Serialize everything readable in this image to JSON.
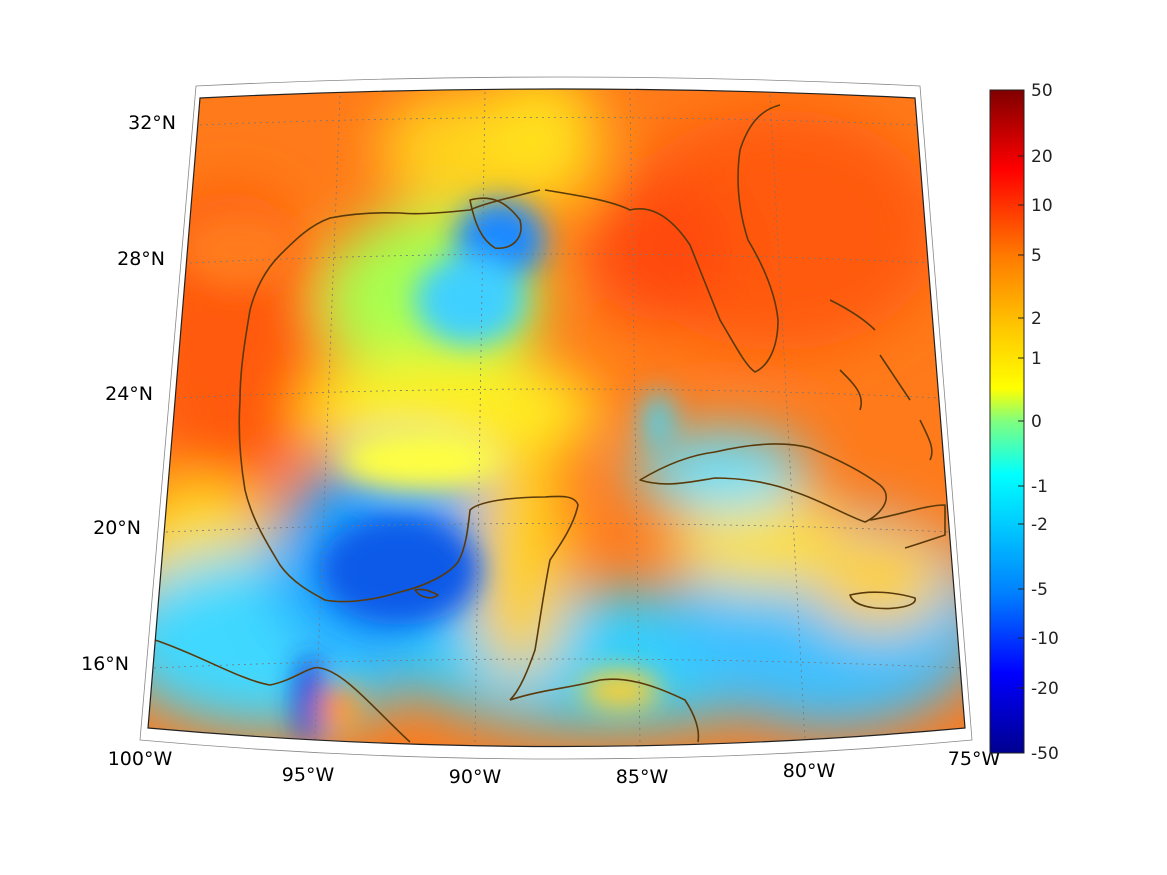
{
  "map": {
    "title": "",
    "projection": "conic",
    "lon_range": [
      -100,
      -75
    ],
    "lat_range": [
      14,
      33
    ],
    "grid": true,
    "lat_labels": [
      "32°N",
      "28°N",
      "24°N",
      "20°N",
      "16°N"
    ],
    "lon_labels": [
      "100°W",
      "95°W",
      "90°W",
      "85°W",
      "80°W",
      "75°W"
    ],
    "coastline_color": "#5a3a0a"
  },
  "colorbar": {
    "colormap": "jet",
    "scale": "symmetric-log",
    "tick_labels": [
      "50",
      "20",
      "10",
      "5",
      "2",
      "1",
      "0",
      "-1",
      "-2",
      "-5",
      "-10",
      "-20",
      "-50"
    ]
  }
}
